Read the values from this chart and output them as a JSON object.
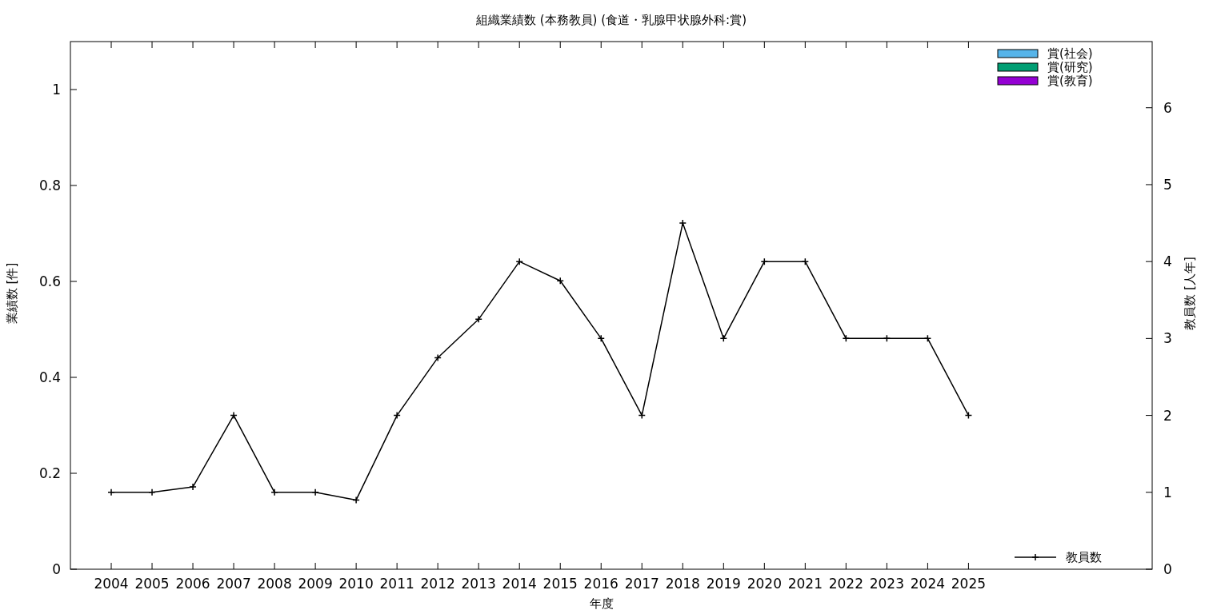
{
  "chart_data": {
    "type": "bar",
    "title": "組織業績数 (本務教員) (食道・乳腺甲状腺外科:賞)",
    "xlabel": "年度",
    "ylabel": "業績数 [件]",
    "y2label": "教員数 [人年]",
    "x": [
      2004,
      2005,
      2006,
      2007,
      2008,
      2009,
      2010,
      2011,
      2012,
      2013,
      2014,
      2015,
      2016,
      2017,
      2018,
      2019,
      2020,
      2021,
      2022,
      2023,
      2024,
      2025
    ],
    "xlim": [
      2003,
      2029.5
    ],
    "xticks": [
      2004,
      2005,
      2006,
      2007,
      2008,
      2009,
      2010,
      2011,
      2012,
      2013,
      2014,
      2015,
      2016,
      2017,
      2018,
      2019,
      2020,
      2021,
      2022,
      2023,
      2024,
      2025
    ],
    "ylim": [
      0,
      1.1
    ],
    "yticks": [
      0,
      0.2,
      0.4,
      0.6,
      0.8,
      1
    ],
    "y2lim": [
      0,
      6.86
    ],
    "y2ticks": [
      0,
      1,
      2,
      3,
      4,
      5,
      6
    ],
    "legend": "right",
    "grid": false,
    "series": [
      {
        "name": "賞(社会)",
        "color": "#56b4e9",
        "values": [
          0,
          0,
          0,
          0,
          0,
          0,
          0,
          0,
          0,
          0,
          0,
          0,
          0,
          0,
          0,
          0,
          0,
          0,
          0,
          0,
          0,
          0
        ]
      },
      {
        "name": "賞(研究)",
        "color": "#009e73",
        "values": [
          0,
          0,
          0,
          0,
          0,
          0,
          0,
          0,
          0,
          0,
          0,
          0,
          0,
          0,
          0,
          0,
          0,
          0,
          0,
          0,
          0,
          0
        ]
      },
      {
        "name": "賞(教育)",
        "color": "#9400d3",
        "values": [
          0,
          0,
          0,
          0,
          0,
          0,
          0,
          0,
          0,
          0,
          0,
          0,
          0,
          0,
          0,
          0,
          0,
          0,
          0,
          0,
          0,
          0
        ]
      },
      {
        "name": "教員数",
        "type": "line",
        "axis": "y2",
        "color": "#000000",
        "marker": "cross",
        "values": [
          1,
          1,
          1.07,
          2,
          1,
          1,
          0.9,
          2,
          2.75,
          3.25,
          4,
          3.75,
          3,
          2,
          4.5,
          3,
          4,
          4,
          3,
          3,
          3,
          2
        ]
      }
    ]
  }
}
